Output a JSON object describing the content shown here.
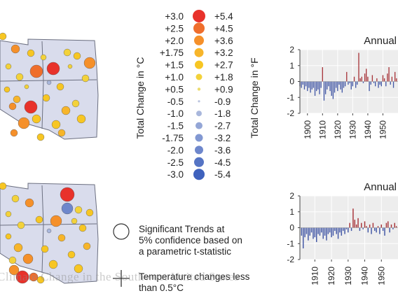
{
  "legend": {
    "c_label": "Total Change in °C",
    "f_label": "Total Change in °F",
    "rows": [
      {
        "c": "+3.0",
        "f": "+5.4",
        "color": "#e8322b"
      },
      {
        "c": "+2.5",
        "f": "+4.5",
        "color": "#ef6e2c"
      },
      {
        "c": "+2.0",
        "f": "+3.6",
        "color": "#f5902a"
      },
      {
        "c": "+1.75",
        "f": "+3.2",
        "color": "#f7b52a"
      },
      {
        "c": "+1.5",
        "f": "+2.7",
        "color": "#f7c623"
      },
      {
        "c": "+1.0",
        "f": "+1.8",
        "color": "#f3d23a"
      },
      {
        "c": "+0.5",
        "f": "+0.9",
        "color": "#ecdb6e"
      },
      {
        "c": "-0.5",
        "f": "-0.9",
        "color": "#b9c3de"
      },
      {
        "c": "-1.0",
        "f": "-1.8",
        "color": "#a9b7dc"
      },
      {
        "c": "-1.5",
        "f": "-2.7",
        "color": "#94a6d6"
      },
      {
        "c": "-1.75",
        "f": "-3.2",
        "color": "#8298d2"
      },
      {
        "c": "-2.0",
        "f": "-3.6",
        "color": "#6e87cc"
      },
      {
        "c": "-2.5",
        "f": "-4.5",
        "color": "#5574c4"
      },
      {
        "c": "-3.0",
        "f": "-5.4",
        "color": "#3f62bd"
      }
    ]
  },
  "notes": {
    "significant": "Significant Trends at 95% confidence based on a parametric t-statistic",
    "small_change": "Temperature changes less than 0.5°C"
  },
  "watermark": "Climate Change in the Southwest United States",
  "chart_data": [
    {
      "type": "bar",
      "title": "Annual",
      "x": [
        1895,
        1896,
        1897,
        1898,
        1899,
        1900,
        1901,
        1902,
        1903,
        1904,
        1905,
        1906,
        1907,
        1908,
        1909,
        1910,
        1911,
        1912,
        1913,
        1914,
        1915,
        1916,
        1917,
        1918,
        1919,
        1920,
        1921,
        1922,
        1923,
        1924,
        1925,
        1926,
        1927,
        1928,
        1929,
        1930,
        1931,
        1932,
        1933,
        1934,
        1935,
        1936,
        1937,
        1938,
        1939,
        1940,
        1941,
        1942,
        1943,
        1944,
        1945,
        1946,
        1947,
        1948,
        1949,
        1950,
        1951,
        1952,
        1953,
        1954,
        1955,
        1956,
        1957,
        1958,
        1959
      ],
      "values": [
        -0.3,
        -0.4,
        -0.2,
        -0.5,
        -0.3,
        -0.6,
        -0.4,
        -0.7,
        -0.5,
        -0.4,
        -0.9,
        -0.6,
        -0.5,
        -0.8,
        -0.4,
        0.9,
        -1.2,
        -0.8,
        -0.5,
        -0.3,
        -0.6,
        -0.9,
        -1.1,
        -0.7,
        -0.4,
        -0.6,
        -0.2,
        -0.5,
        -0.7,
        -0.4,
        -0.3,
        0.6,
        -0.2,
        -0.1,
        -0.5,
        -0.3,
        0.3,
        -0.4,
        -0.2,
        1.8,
        0.2,
        0.3,
        -0.1,
        0.5,
        0.8,
        0.3,
        -0.6,
        -0.2,
        0.4,
        -0.1,
        -0.3,
        0.2,
        -0.4,
        -0.2,
        -0.3,
        0.4,
        0.2,
        -0.3,
        0.5,
        0.9,
        -0.2,
        0.3,
        -0.4,
        0.6,
        0.2
      ],
      "x_ticks": [
        1900,
        1910,
        1920,
        1930,
        1940,
        1950
      ],
      "y_ticks": [
        -2,
        -1,
        0,
        1,
        2
      ],
      "ylim": [
        -2,
        2
      ],
      "xlim": [
        1895,
        1960
      ],
      "grid": true
    },
    {
      "type": "bar",
      "title": "Annual",
      "x": [
        1902,
        1903,
        1904,
        1905,
        1906,
        1907,
        1908,
        1909,
        1910,
        1911,
        1912,
        1913,
        1914,
        1915,
        1916,
        1917,
        1918,
        1919,
        1920,
        1921,
        1922,
        1923,
        1924,
        1925,
        1926,
        1927,
        1928,
        1929,
        1930,
        1931,
        1932,
        1933,
        1934,
        1935,
        1936,
        1937,
        1938,
        1939,
        1940,
        1941,
        1942,
        1943,
        1944,
        1945,
        1946,
        1947,
        1948,
        1949,
        1950,
        1951,
        1952,
        1953,
        1954,
        1955,
        1956,
        1957,
        1958,
        1959
      ],
      "values": [
        -0.5,
        -1.3,
        -0.6,
        -0.4,
        -0.8,
        -0.5,
        -0.3,
        -0.7,
        -0.6,
        -0.9,
        -0.4,
        -0.5,
        -0.3,
        -0.7,
        -0.5,
        -0.8,
        -0.4,
        -0.3,
        -0.6,
        -0.5,
        -0.2,
        -0.4,
        -0.7,
        -0.3,
        -0.5,
        -0.2,
        -0.4,
        -0.1,
        -0.3,
        0.3,
        -0.2,
        1.2,
        0.5,
        0.2,
        0.6,
        -0.2,
        0.3,
        -0.1,
        0.4,
        0.1,
        -0.3,
        0.2,
        -0.4,
        0.3,
        -0.2,
        -0.3,
        0.1,
        -0.4,
        0.2,
        -0.2,
        -0.5,
        0.3,
        0.4,
        -0.3,
        0.2,
        -0.1,
        0.3,
        0.1
      ],
      "x_ticks": [
        1910,
        1920,
        1930,
        1940,
        1950
      ],
      "y_ticks": [
        -2,
        -1,
        0,
        1,
        2
      ],
      "ylim": [
        -2,
        2
      ],
      "xlim": [
        1901,
        1960
      ],
      "grid": true
    }
  ]
}
